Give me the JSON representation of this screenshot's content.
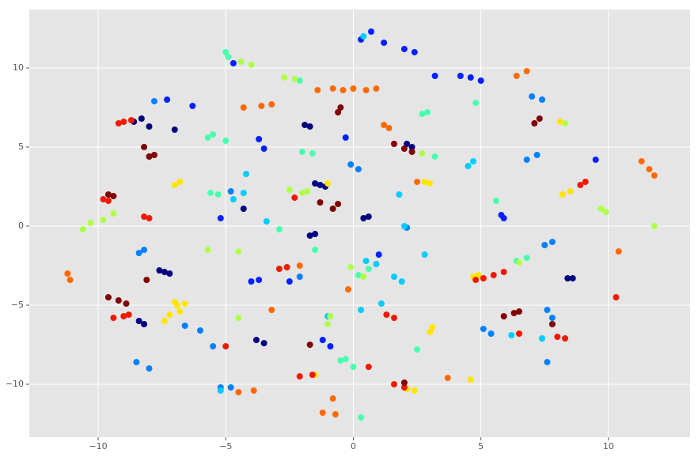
{
  "chart_data": {
    "type": "scatter",
    "xlim": [
      -12.7,
      13.2
    ],
    "ylim": [
      -13.35,
      13.7
    ],
    "xticks": [
      {
        "value": -10,
        "label": "−10"
      },
      {
        "value": -5,
        "label": "−5"
      },
      0,
      5,
      10
    ],
    "yticks": [
      {
        "value": -10,
        "label": "−10"
      },
      {
        "value": -5,
        "label": "−5"
      },
      0,
      5,
      10
    ],
    "grid": true,
    "series": [
      {
        "color": "#00007f",
        "x": [
          -8.6,
          -8.3,
          -8.0,
          -7.6,
          -7.4,
          -7.2,
          -1.9,
          -1.7,
          -1.5,
          -1.3,
          -1.1,
          -1.5,
          -1.7,
          0.4,
          0.6,
          -3.8,
          -3.5,
          -8.2,
          -8.4,
          8.4,
          8.6,
          -7.0,
          -4.3,
          2.1,
          2.3
        ],
        "y": [
          6.6,
          6.8,
          6.3,
          -2.8,
          -2.9,
          -3.0,
          6.4,
          6.3,
          2.7,
          2.6,
          2.5,
          -0.5,
          -0.6,
          0.5,
          0.6,
          -7.2,
          -7.4,
          -6.2,
          -6.0,
          -3.3,
          -3.3,
          6.1,
          1.1,
          5.2,
          5.0
        ]
      },
      {
        "color": "#0020ff",
        "x": [
          0.3,
          0.7,
          1.2,
          2.0,
          2.4,
          3.2,
          4.2,
          4.6,
          5.0,
          -4.7,
          -7.3,
          -6.3,
          -3.7,
          -3.5,
          -0.3,
          5.8,
          5.9,
          9.5,
          -2.5,
          -1.2,
          -0.9,
          -4.0,
          -3.7,
          1.0,
          -5.2
        ],
        "y": [
          11.8,
          12.3,
          11.6,
          11.2,
          11.0,
          9.5,
          9.5,
          9.4,
          9.2,
          10.3,
          8.0,
          7.6,
          5.5,
          4.9,
          5.6,
          0.7,
          0.5,
          4.2,
          -3.5,
          -7.2,
          -7.6,
          -3.5,
          -3.4,
          -1.8,
          0.5
        ]
      },
      {
        "color": "#0080ff",
        "x": [
          -7.8,
          -8.2,
          -8.4,
          -6.6,
          -6.0,
          -5.5,
          -5.2,
          -4.8,
          -8.5,
          -8.0,
          -2.1,
          7.0,
          7.4,
          6.8,
          7.2,
          7.5,
          7.8,
          5.1,
          5.4,
          7.6,
          7.8,
          7.6,
          -0.1,
          0.2,
          2.1,
          -4.8
        ],
        "y": [
          7.9,
          -1.5,
          -1.7,
          -6.3,
          -6.6,
          -7.6,
          -10.2,
          -10.2,
          -8.6,
          -9.0,
          -3.2,
          8.2,
          8.0,
          4.2,
          4.5,
          -1.2,
          -1.0,
          -6.5,
          -6.8,
          -5.3,
          -5.8,
          -8.6,
          3.9,
          3.6,
          -0.1,
          2.2
        ]
      },
      {
        "color": "#00ccff",
        "x": [
          0.4,
          -4.2,
          -4.7,
          -4.3,
          -5.2,
          0.9,
          0.5,
          1.6,
          1.9,
          2.8,
          7.4,
          6.2,
          4.7,
          4.5,
          0.3,
          1.1,
          1.8,
          2.0,
          -1.0,
          -3.4
        ],
        "y": [
          12.0,
          3.3,
          1.7,
          2.1,
          -10.4,
          -2.4,
          -2.2,
          -3.2,
          -3.5,
          -1.8,
          -7.1,
          -6.9,
          4.1,
          3.8,
          -5.3,
          -4.9,
          2.0,
          0.0,
          -5.7,
          0.3
        ]
      },
      {
        "color": "#49ffad",
        "x": [
          -5.0,
          -4.9,
          -2.1,
          -5.7,
          -5.5,
          -5.0,
          -5.3,
          -5.6,
          -1.6,
          -2.0,
          2.9,
          2.7,
          4.8,
          -0.3,
          -0.5,
          0.0,
          0.3,
          0.6,
          6.4,
          6.8,
          2.5,
          3.2,
          5.6,
          -1.5,
          -2.9,
          0.2
        ],
        "y": [
          11.0,
          10.7,
          9.2,
          5.6,
          5.8,
          5.4,
          2.0,
          2.1,
          4.6,
          4.7,
          7.2,
          7.1,
          7.8,
          -8.4,
          -8.5,
          -8.9,
          -12.1,
          -2.7,
          -2.2,
          -2.0,
          -7.8,
          4.4,
          1.6,
          -1.5,
          -0.2,
          -3.1
        ]
      },
      {
        "color": "#adff49",
        "x": [
          -4.4,
          -4.0,
          -2.7,
          -2.3,
          -9.8,
          -10.3,
          -10.6,
          -9.4,
          -2.5,
          -2.0,
          -1.8,
          -5.7,
          -4.5,
          -1.0,
          -0.9,
          -0.1,
          0.4,
          2.7,
          9.7,
          9.9,
          11.8,
          8.3,
          -4.5,
          6.5
        ],
        "y": [
          10.4,
          10.2,
          9.4,
          9.3,
          0.4,
          0.2,
          -0.2,
          0.8,
          2.3,
          2.1,
          2.2,
          -1.5,
          -1.6,
          -6.2,
          -5.7,
          -2.6,
          -3.2,
          4.6,
          1.1,
          0.9,
          0.0,
          6.5,
          -5.8,
          -2.3
        ]
      },
      {
        "color": "#ffe500",
        "x": [
          -6.9,
          -7.0,
          -7.2,
          -6.6,
          -7.4,
          -6.8,
          -7.0,
          -6.8,
          2.8,
          3.0,
          8.2,
          8.5,
          4.9,
          4.7,
          2.1,
          2.4,
          -1.5,
          3.1,
          3.0,
          8.1,
          -1.0,
          4.6
        ],
        "y": [
          -5.0,
          -4.8,
          -5.6,
          -4.9,
          -6.0,
          -5.4,
          2.6,
          2.8,
          2.8,
          2.7,
          2.0,
          2.2,
          -3.1,
          -3.2,
          -10.3,
          -10.4,
          -9.4,
          -6.4,
          -6.7,
          6.6,
          2.7,
          -9.7
        ]
      },
      {
        "color": "#ff6a00",
        "x": [
          -0.8,
          -0.4,
          0.0,
          0.5,
          0.9,
          -1.4,
          -3.6,
          -4.3,
          -3.2,
          1.2,
          1.4,
          6.4,
          6.8,
          11.3,
          11.6,
          11.8,
          -11.2,
          -11.1,
          -3.9,
          -4.5,
          -1.2,
          -0.7,
          2.5,
          -2.1,
          -3.2,
          3.7,
          -0.2,
          10.4,
          -0.8
        ],
        "y": [
          8.7,
          8.6,
          8.7,
          8.6,
          8.7,
          8.6,
          7.6,
          7.5,
          7.7,
          6.4,
          6.2,
          9.5,
          9.8,
          4.1,
          3.6,
          3.2,
          -3.0,
          -3.4,
          -10.4,
          -10.5,
          -11.8,
          -11.9,
          2.8,
          -2.5,
          -5.3,
          -9.6,
          -4.0,
          -1.6,
          -10.9
        ]
      },
      {
        "color": "#f01a00",
        "x": [
          -9.2,
          -9.0,
          -8.7,
          -9.8,
          -9.6,
          -8.2,
          -8.0,
          -2.6,
          -2.9,
          -9.4,
          -9.0,
          -8.8,
          5.1,
          5.5,
          5.9,
          -2.1,
          -1.6,
          1.6,
          2.0,
          0.6,
          1.3,
          1.6,
          4.8,
          8.9,
          9.1,
          8.0,
          8.3,
          6.5,
          -5.0,
          -2.3,
          10.3
        ],
        "y": [
          6.5,
          6.6,
          6.7,
          1.7,
          1.6,
          0.6,
          0.5,
          -2.6,
          -2.7,
          -5.8,
          -5.7,
          -5.6,
          -3.3,
          -3.1,
          -2.9,
          -9.5,
          -9.4,
          -10.0,
          -10.2,
          -8.9,
          -5.6,
          -5.8,
          -3.4,
          2.6,
          2.8,
          -7.0,
          -7.1,
          -6.8,
          -7.6,
          1.8,
          -4.5
        ]
      },
      {
        "color": "#800000",
        "x": [
          -9.6,
          -9.4,
          -8.0,
          -7.8,
          -1.3,
          -0.6,
          -0.8,
          -0.5,
          -0.6,
          1.6,
          2.0,
          2.3,
          -9.6,
          -9.2,
          -8.9,
          -8.1,
          7.3,
          7.1,
          6.3,
          5.9,
          6.5,
          2.0,
          -8.2,
          7.8,
          -1.7
        ],
        "y": [
          2.0,
          1.9,
          4.4,
          4.5,
          1.5,
          1.4,
          1.1,
          7.5,
          7.2,
          5.2,
          4.9,
          4.7,
          -4.5,
          -4.7,
          -4.9,
          -3.4,
          6.8,
          6.5,
          -5.5,
          -5.7,
          -5.4,
          -9.9,
          5.0,
          -6.2,
          -7.5
        ]
      }
    ]
  }
}
